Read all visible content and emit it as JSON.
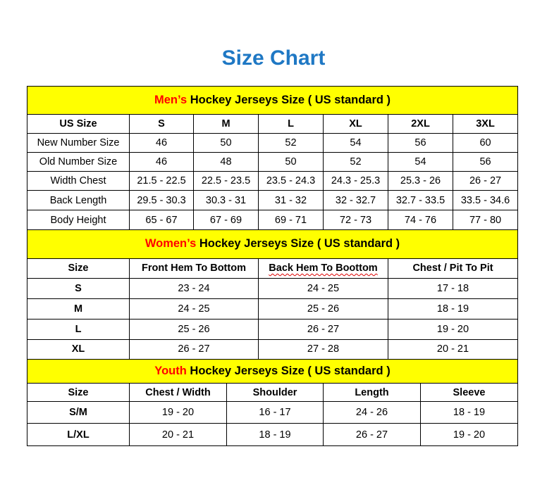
{
  "title": "Size Chart",
  "colors": {
    "title": "#1f78c4",
    "section_bg": "#ffff00",
    "highlight": "#ff0000"
  },
  "men": {
    "heading_highlight": "Men’s",
    "heading_rest": " Hockey Jerseys Size ( US standard )",
    "columns": [
      "US Size",
      "S",
      "M",
      "L",
      "XL",
      "2XL",
      "3XL"
    ],
    "rows": [
      [
        "New Number Size",
        "46",
        "50",
        "52",
        "54",
        "56",
        "60"
      ],
      [
        "Old Number Size",
        "46",
        "48",
        "50",
        "52",
        "54",
        "56"
      ],
      [
        "Width Chest",
        "21.5 - 22.5",
        "22.5 - 23.5",
        "23.5 - 24.3",
        "24.3 - 25.3",
        "25.3 - 26",
        "26 - 27"
      ],
      [
        "Back Length",
        "29.5 - 30.3",
        "30.3 - 31",
        "31 - 32",
        "32 - 32.7",
        "32.7 - 33.5",
        "33.5 - 34.6"
      ],
      [
        "Body Height",
        "65 - 67",
        "67 - 69",
        "69 - 71",
        "72 - 73",
        "74 - 76",
        "77 - 80"
      ]
    ]
  },
  "women": {
    "heading_highlight": "Women’s",
    "heading_rest": " Hockey Jerseys Size ( US standard )",
    "columns": [
      "Size",
      "Front Hem To Bottom",
      "Back Hem To Boottom",
      "Chest / Pit To Pit"
    ],
    "rows": [
      [
        "S",
        "23 - 24",
        "24 - 25",
        "17 - 18"
      ],
      [
        "M",
        "24 - 25",
        "25 - 26",
        "18 - 19"
      ],
      [
        "L",
        "25 - 26",
        "26 - 27",
        "19 - 20"
      ],
      [
        "XL",
        "26 - 27",
        "27 - 28",
        "20 - 21"
      ]
    ]
  },
  "youth": {
    "heading_highlight": "Youth",
    "heading_rest": " Hockey Jerseys Size ( US standard )",
    "columns": [
      "Size",
      "Chest / Width",
      "Shoulder",
      "Length",
      "Sleeve"
    ],
    "rows": [
      [
        "S/M",
        "19 - 20",
        "16 - 17",
        "24 - 26",
        "18 - 19"
      ],
      [
        "L/XL",
        "20 - 21",
        "18 - 19",
        "26 - 27",
        "19 - 20"
      ]
    ]
  }
}
